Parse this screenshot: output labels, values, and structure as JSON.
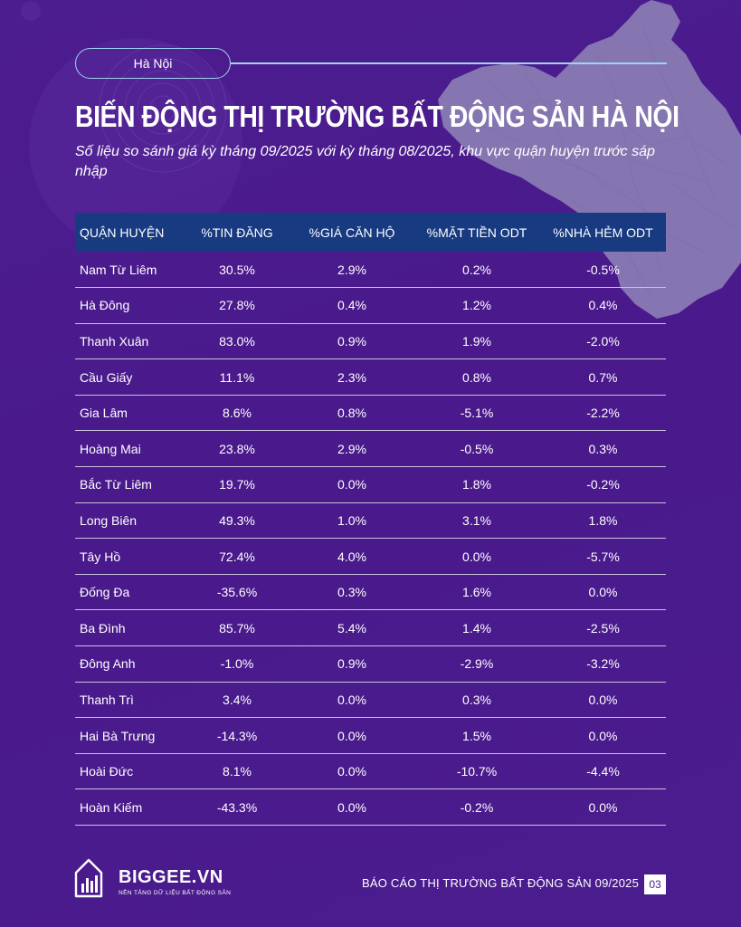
{
  "header": {
    "location_label": "Hà Nội",
    "title": "BIẾN ĐỘNG THỊ TRƯỜNG BẤT ĐỘNG SẢN HÀ NỘI",
    "subtitle": "Số liệu so sánh giá kỳ tháng 09/2025 với kỳ tháng 08/2025, khu vực quận huyện trước sáp nhập"
  },
  "table": {
    "columns": [
      "QUẬN HUYỆN",
      "%TIN ĐĂNG",
      "%GIÁ CĂN HỘ",
      "%MẶT TIỀN ODT",
      "%NHÀ HẺM ODT"
    ],
    "rows": [
      [
        "Nam Từ Liêm",
        "30.5%",
        "2.9%",
        "0.2%",
        "-0.5%"
      ],
      [
        "Hà Đông",
        "27.8%",
        "0.4%",
        "1.2%",
        "0.4%"
      ],
      [
        "Thanh Xuân",
        "83.0%",
        "0.9%",
        "1.9%",
        "-2.0%"
      ],
      [
        "Cầu Giấy",
        "11.1%",
        "2.3%",
        "0.8%",
        "0.7%"
      ],
      [
        "Gia Lâm",
        "8.6%",
        "0.8%",
        "-5.1%",
        "-2.2%"
      ],
      [
        "Hoàng Mai",
        "23.8%",
        "2.9%",
        "-0.5%",
        "0.3%"
      ],
      [
        "Bắc Từ Liêm",
        "19.7%",
        "0.0%",
        "1.8%",
        "-0.2%"
      ],
      [
        "Long Biên",
        "49.3%",
        "1.0%",
        "3.1%",
        "1.8%"
      ],
      [
        "Tây Hồ",
        "72.4%",
        "4.0%",
        "0.0%",
        "-5.7%"
      ],
      [
        "Đống Đa",
        "-35.6%",
        "0.3%",
        "1.6%",
        "0.0%"
      ],
      [
        "Ba Đình",
        "85.7%",
        "5.4%",
        "1.4%",
        "-2.5%"
      ],
      [
        "Đông Anh",
        "-1.0%",
        "0.9%",
        "-2.9%",
        "-3.2%"
      ],
      [
        "Thanh Trì",
        "3.4%",
        "0.0%",
        "0.3%",
        "0.0%"
      ],
      [
        "Hai Bà Trưng",
        "-14.3%",
        "0.0%",
        "1.5%",
        "0.0%"
      ],
      [
        "Hoài Đức",
        "8.1%",
        "0.0%",
        "-10.7%",
        "-4.4%"
      ],
      [
        "Hoàn Kiếm",
        "-43.3%",
        "0.0%",
        "-0.2%",
        "0.0%"
      ]
    ]
  },
  "footer": {
    "brand_name": "BIGGEE.VN",
    "brand_tagline": "NỀN TẢNG DỮ LIỆU BẤT ĐỘNG SẢN",
    "report_label": "BÁO CÁO THỊ TRƯỜNG BẤT ĐỘNG SẢN 09/2025",
    "page_number": "03",
    "logo_icon": "building-chart-icon"
  },
  "colors": {
    "background": "#4a1a8c",
    "table_header": "#173a80",
    "accent_line": "#9fd3f0",
    "map": "#8f86b8"
  }
}
